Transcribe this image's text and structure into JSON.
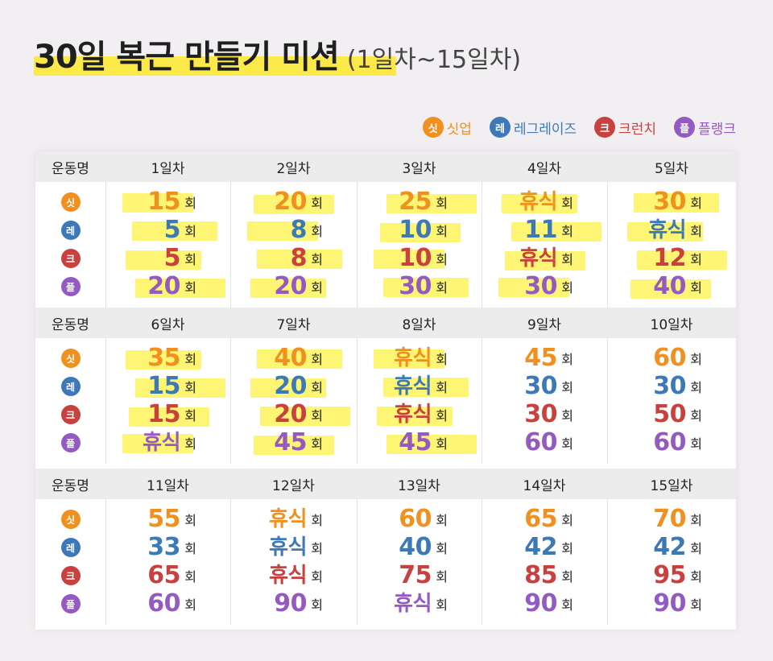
{
  "title": {
    "main": "30일 복근 만들기 미션",
    "sub": "(1일차~15일차)"
  },
  "legend": [
    {
      "badge": "싯",
      "label": "싯업",
      "color": "#f0901e"
    },
    {
      "badge": "레",
      "label": "레그레이즈",
      "color": "#3d79b6"
    },
    {
      "badge": "크",
      "label": "크런치",
      "color": "#c9413e"
    },
    {
      "badge": "플",
      "label": "플랭크",
      "color": "#9559c2"
    }
  ],
  "header_label": "운동명",
  "unit": "회",
  "rows": [
    {
      "days": [
        "1일차",
        "2일차",
        "3일차",
        "4일차",
        "5일차"
      ],
      "values": [
        [
          "15",
          "5",
          "5",
          "20"
        ],
        [
          "20",
          "8",
          "8",
          "20"
        ],
        [
          "25",
          "10",
          "10",
          "30"
        ],
        [
          "휴식",
          "11",
          "휴식",
          "30"
        ],
        [
          "30",
          "휴식",
          "12",
          "40"
        ]
      ]
    },
    {
      "days": [
        "6일차",
        "7일차",
        "8일차",
        "9일차",
        "10일차"
      ],
      "values": [
        [
          "35",
          "15",
          "15",
          "휴식"
        ],
        [
          "40",
          "20",
          "20",
          "45"
        ],
        [
          "휴식",
          "휴식",
          "휴식",
          "45"
        ],
        [
          "45",
          "30",
          "30",
          "60"
        ],
        [
          "60",
          "30",
          "50",
          "60"
        ]
      ]
    },
    {
      "days": [
        "11일차",
        "12일차",
        "13일차",
        "14일차",
        "15일차"
      ],
      "values": [
        [
          "55",
          "33",
          "65",
          "60"
        ],
        [
          "휴식",
          "휴식",
          "휴식",
          "90"
        ],
        [
          "60",
          "40",
          "75",
          "휴식"
        ],
        [
          "65",
          "42",
          "85",
          "90"
        ],
        [
          "70",
          "42",
          "95",
          "90"
        ]
      ]
    }
  ]
}
